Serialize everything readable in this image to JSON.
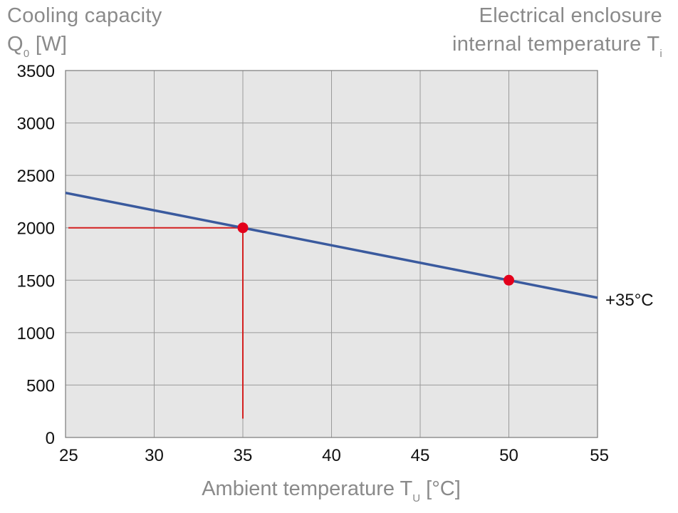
{
  "header": {
    "ylabel_line1": "Cooling capacity",
    "ylabel_symbol": "Q",
    "ylabel_subscript": "0",
    "ylabel_unit": "[W]",
    "right_line1": "Electrical enclosure",
    "right_line2_main": "internal temperature T",
    "right_line2_subscript": "i"
  },
  "xaxis": {
    "title_main": "Ambient temperature T",
    "title_subscript": "U",
    "title_unit": "[°C]"
  },
  "chart_data": {
    "type": "line",
    "title": "",
    "xlabel": "Ambient temperature T_U [°C]",
    "ylabel": "Cooling capacity Q_0 [W]",
    "xlim": [
      25,
      55
    ],
    "ylim": [
      0,
      3500
    ],
    "xticks": [
      25,
      30,
      35,
      40,
      45,
      50,
      55
    ],
    "yticks": [
      0,
      500,
      1000,
      1500,
      2000,
      2500,
      3000,
      3500
    ],
    "grid": true,
    "series": [
      {
        "name": "+35°C",
        "color": "#3a5a9e",
        "x": [
          25,
          55
        ],
        "y": [
          2333,
          1333
        ]
      }
    ],
    "highlight_points": [
      {
        "x": 35,
        "y": 2000,
        "color": "#e3001b"
      },
      {
        "x": 50,
        "y": 1500,
        "color": "#e3001b"
      }
    ],
    "reference_lines": {
      "color": "#d42020",
      "x": 35,
      "y": 2000
    },
    "plot_background": "#e6e6e6",
    "grid_color": "#9a9a9a"
  }
}
